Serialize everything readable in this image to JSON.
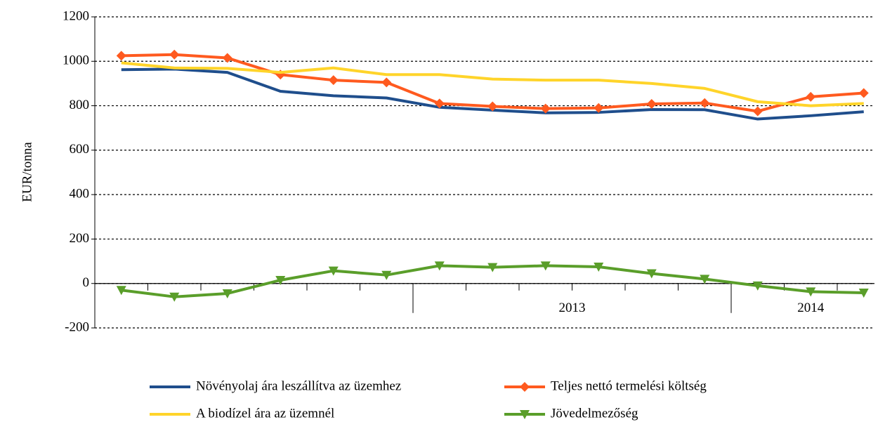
{
  "chart_data": {
    "type": "line",
    "y_label": "EUR/tonna",
    "categories": [
      null,
      null,
      null,
      null,
      null,
      null,
      null,
      null,
      null,
      null,
      null,
      null,
      null,
      null,
      null
    ],
    "x_groups": [
      {
        "label": "2013",
        "start": 6,
        "end": 11
      },
      {
        "label": "2014",
        "start": 12,
        "end": 14
      }
    ],
    "ylim": [
      -200,
      1200
    ],
    "yticks": [
      -200,
      0,
      200,
      400,
      600,
      800,
      1000,
      1200
    ],
    "grid": true,
    "series": [
      {
        "name": "Növényolaj ára leszállítva az üzemhez",
        "color": "#1f4e8c",
        "marker": null,
        "values": [
          962,
          965,
          950,
          865,
          845,
          835,
          793,
          780,
          768,
          770,
          783,
          782,
          740,
          755,
          773
        ]
      },
      {
        "name": "Teljes nettó termelési költség",
        "color": "#ff5a1f",
        "marker": "diamond",
        "values": [
          1025,
          1030,
          1015,
          940,
          915,
          905,
          810,
          797,
          787,
          790,
          808,
          812,
          775,
          840,
          857
        ]
      },
      {
        "name": "A biodízel ára az üzemnél",
        "color": "#ffd42a",
        "marker": null,
        "values": [
          993,
          970,
          968,
          950,
          970,
          940,
          940,
          920,
          915,
          915,
          900,
          878,
          818,
          800,
          810
        ]
      },
      {
        "name": "Jövedelmezőség",
        "color": "#5a9e2a",
        "marker": "triangle-down",
        "values": [
          -30,
          -60,
          -45,
          15,
          57,
          38,
          80,
          73,
          80,
          75,
          45,
          20,
          -10,
          -37,
          -42
        ]
      }
    ]
  }
}
